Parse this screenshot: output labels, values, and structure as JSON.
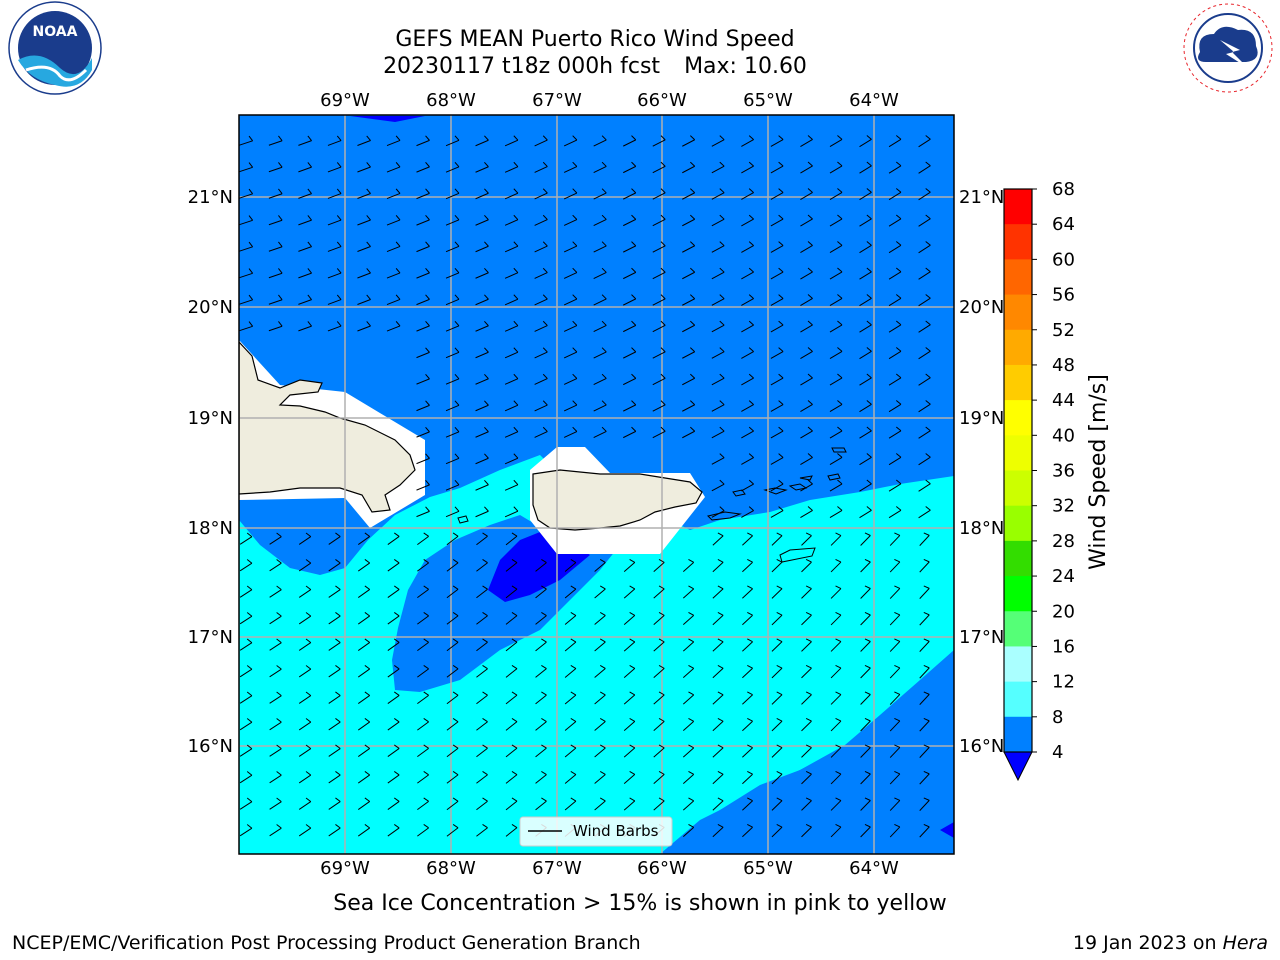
{
  "title_line1": "GEFS MEAN Puerto Rico Wind Speed",
  "title_run": "20230117 t18z 000h fcst",
  "title_max": "Max: 10.60",
  "lon_ticks": [
    "69°W",
    "68°W",
    "67°W",
    "66°W",
    "65°W",
    "64°W"
  ],
  "lat_ticks": [
    "21°N",
    "20°N",
    "19°N",
    "18°N",
    "17°N",
    "16°N"
  ],
  "legend_label": "Wind Barbs",
  "colorbar": {
    "title": "Wind Speed [m/s]",
    "ticks": [
      "68",
      "64",
      "60",
      "56",
      "52",
      "48",
      "44",
      "40",
      "36",
      "32",
      "28",
      "24",
      "20",
      "16",
      "12",
      "8",
      "4"
    ],
    "colors": [
      "#ff0000",
      "#ff3300",
      "#ff6600",
      "#ff8800",
      "#ffaa00",
      "#ffcc00",
      "#ffff00",
      "#eeff00",
      "#ccff00",
      "#99ff00",
      "#33dd00",
      "#00ff00",
      "#55ff77",
      "#aaffff",
      "#55ffff",
      "#00ffff",
      "#0080ff"
    ],
    "under_color": "#0000ff"
  },
  "colors": {
    "ocean_4_8": "#0080ff",
    "ocean_8_12": "#00ffff",
    "ocean_lt4": "#0000ff",
    "land": "#efedde",
    "grid": "#b0b0b0"
  },
  "bottom_note": "Sea Ice Concentration > 15% is shown in pink to yellow",
  "credit": "NCEP/EMC/Verification Post Processing Product Generation Branch",
  "date": "19 Jan 2023 on",
  "host": "Hera",
  "logos": {
    "noaa": "NOAA",
    "nws": "NATIONAL WEATHER SERVICE"
  }
}
